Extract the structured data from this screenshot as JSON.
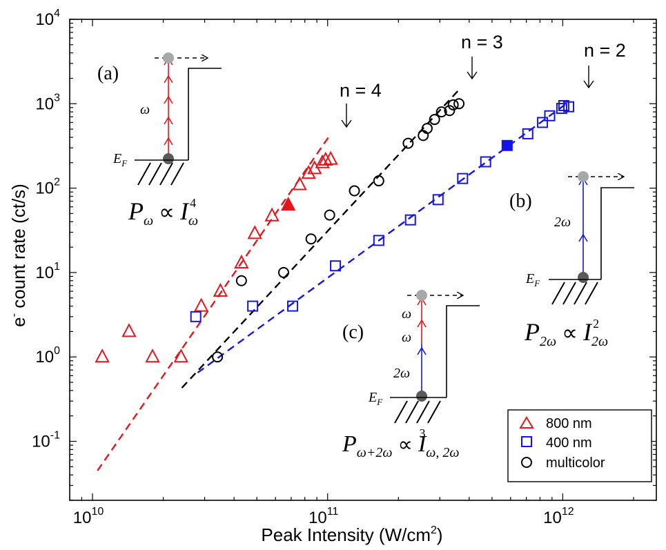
{
  "chart_data": {
    "type": "scatter",
    "xlabel": "Peak Intensity (W/cm",
    "xlabel_sup": "2",
    "xlabel_close": ")",
    "ylabel": "e",
    "ylabel_sup": "-",
    "ylabel_rest": " count rate (ct/s)",
    "x_scale": "log",
    "y_scale": "log",
    "xlim": [
      8000000000.0,
      2500000000000.0
    ],
    "ylim": [
      0.02,
      10000
    ],
    "x_ticks": [
      {
        "value": 10000000000.0,
        "base": "10",
        "exp": "10"
      },
      {
        "value": 100000000000.0,
        "base": "10",
        "exp": "11"
      },
      {
        "value": 1000000000000.0,
        "base": "10",
        "exp": "12"
      }
    ],
    "y_ticks": [
      {
        "value": 0.1,
        "base": "10",
        "exp": "-1"
      },
      {
        "value": 1,
        "base": "10",
        "exp": "0"
      },
      {
        "value": 10,
        "base": "10",
        "exp": "1"
      },
      {
        "value": 100,
        "base": "10",
        "exp": "2"
      },
      {
        "value": 1000,
        "base": "10",
        "exp": "3"
      },
      {
        "value": 10000,
        "base": "10",
        "exp": "4"
      }
    ],
    "grid": false,
    "legend_position": "bottom-right",
    "series": [
      {
        "name": "800 nm",
        "color": "#e8141c",
        "marker": "triangle",
        "points": [
          [
            11000000000.0,
            1
          ],
          [
            14300000000.0,
            2
          ],
          [
            18000000000.0,
            1
          ],
          [
            23800000000.0,
            1
          ],
          [
            29000000000.0,
            4
          ],
          [
            35000000000.0,
            6
          ],
          [
            43000000000.0,
            13
          ],
          [
            49000000000.0,
            29
          ],
          [
            58000000000.0,
            47
          ],
          [
            76000000000.0,
            110
          ],
          [
            83000000000.0,
            150
          ],
          [
            88000000000.0,
            170
          ],
          [
            95000000000.0,
            200
          ],
          [
            98000000000.0,
            215
          ],
          [
            103000000000.0,
            220
          ]
        ],
        "filled_points": [
          [
            68000000000.0,
            63
          ]
        ],
        "fit": [
          [
            10500000000.0,
            0.045
          ],
          [
            102000000000.0,
            420
          ]
        ]
      },
      {
        "name": "400 nm",
        "color": "#1414e6",
        "marker": "square",
        "points": [
          [
            27500000000.0,
            3
          ],
          [
            48000000000.0,
            4
          ],
          [
            71000000000.0,
            4
          ],
          [
            108000000000.0,
            12
          ],
          [
            165000000000.0,
            24
          ],
          [
            225000000000.0,
            42
          ],
          [
            295000000000.0,
            73
          ],
          [
            375000000000.0,
            130
          ],
          [
            470000000000.0,
            205
          ],
          [
            710000000000.0,
            440
          ],
          [
            820000000000.0,
            600
          ],
          [
            880000000000.0,
            720
          ],
          [
            990000000000.0,
            880
          ],
          [
            1010000000000.0,
            950
          ],
          [
            1060000000000.0,
            920
          ]
        ],
        "filled_points": [
          [
            580000000000.0,
            320
          ]
        ],
        "fit": [
          [
            28000000000.0,
            0.65
          ],
          [
            1060000000000.0,
            1050
          ]
        ]
      },
      {
        "name": "multicolor",
        "color": "#000000",
        "marker": "circle",
        "points": [
          [
            34000000000.0,
            1
          ],
          [
            43000000000.0,
            8
          ],
          [
            65000000000.0,
            10
          ],
          [
            85000000000.0,
            25
          ],
          [
            102000000000.0,
            48
          ],
          [
            130000000000.0,
            93
          ],
          [
            165000000000.0,
            122
          ],
          [
            220000000000.0,
            340
          ],
          [
            255000000000.0,
            420
          ],
          [
            265000000000.0,
            510
          ],
          [
            285000000000.0,
            650
          ],
          [
            305000000000.0,
            800
          ],
          [
            330000000000.0,
            830
          ],
          [
            342000000000.0,
            970
          ],
          [
            362000000000.0,
            1000
          ]
        ],
        "filled_points": [],
        "fit": [
          [
            24000000000.0,
            0.43
          ],
          [
            365000000000.0,
            1500
          ]
        ]
      }
    ],
    "annotations": {
      "n4": {
        "label": "n = 4",
        "x": 103000000000.0,
        "y": 1000
      },
      "n3": {
        "label": "n = 3",
        "x": 360000000000.0,
        "y": 3700
      },
      "n2": {
        "label": "n = 2",
        "x": 1030000000000.0,
        "y": 3400
      },
      "panel_a": "(a)",
      "panel_b": "(b)",
      "panel_c": "(c)",
      "omega": "ω",
      "two_omega": "2ω",
      "fermi_E": "E",
      "fermi_sub": "F",
      "eq_a": {
        "P": "P",
        "Psub": "ω",
        "prop": "∝",
        "I": "I",
        "Isub": "ω",
        "Isup": "4"
      },
      "eq_b": {
        "P": "P",
        "Psub": "2ω",
        "prop": "∝",
        "I": "I",
        "Isub": "2ω",
        "Isup": "2"
      },
      "eq_c": {
        "P": "P",
        "Psub": "ω+2ω",
        "prop": "∝",
        "I": "I",
        "Isub": "ω, 2ω",
        "Isup": "3"
      }
    }
  }
}
